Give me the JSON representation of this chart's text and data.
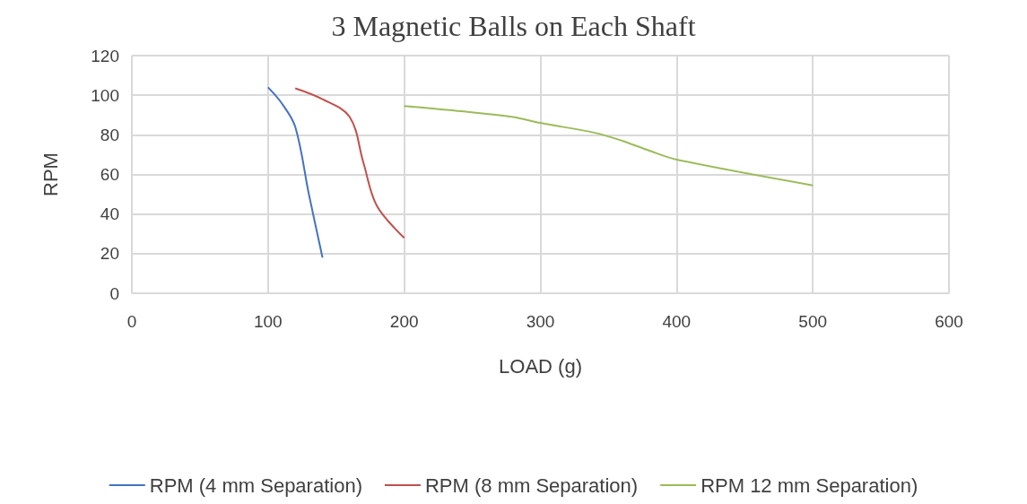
{
  "chart_data": {
    "type": "line",
    "title": "3 Magnetic Balls on Each Shaft",
    "xlabel": "LOAD (g)",
    "ylabel": "RPM",
    "xlim": [
      0,
      600
    ],
    "xticks": [
      0,
      100,
      200,
      300,
      400,
      500,
      600
    ],
    "ylim": [
      0,
      120
    ],
    "yticks": [
      0,
      20,
      40,
      60,
      80,
      100,
      120
    ],
    "grid": true,
    "legend": "bottom",
    "marker": "none",
    "line_style": "solid",
    "series": [
      {
        "name": "RPM (4 mm Separation)",
        "color": "#4472c4",
        "x": [
          100,
          110,
          120,
          130,
          140
        ],
        "values": [
          104,
          96,
          84,
          50,
          18
        ]
      },
      {
        "name": "RPM (8 mm Separation)",
        "color": "#c0504d",
        "x": [
          120,
          140,
          160,
          170,
          180,
          200
        ],
        "values": [
          103.5,
          98,
          89,
          66,
          44,
          28
        ]
      },
      {
        "name": "RPM 12 mm Separation)",
        "color": "#9bbb59",
        "x": [
          200,
          240,
          280,
          300,
          340,
          360,
          380,
          400,
          500
        ],
        "values": [
          94.5,
          92,
          89,
          86,
          81,
          77,
          72,
          67.5,
          54.5
        ]
      }
    ]
  }
}
